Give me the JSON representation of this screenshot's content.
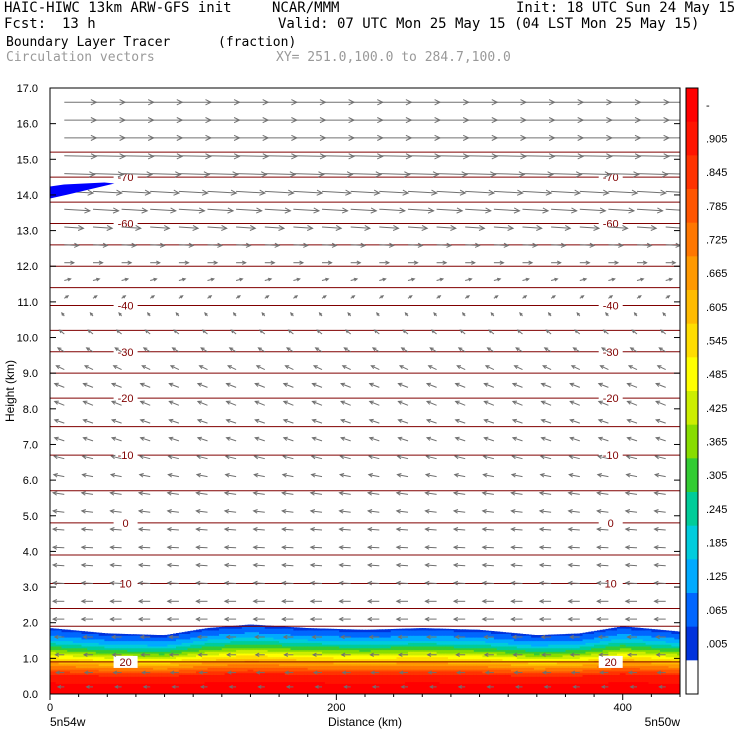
{
  "header": {
    "title_left": "HAIC-HIWC 13km ARW-GFS init",
    "title_center": "NCAR/MMM",
    "init": "Init: 18 UTC Sun 24 May 15",
    "fcst_label": "Fcst:",
    "fcst_value": "13 h",
    "valid": "Valid: 07 UTC Mon 25 May 15 (04 LST Mon 25 May 15)",
    "field_name": "Boundary Layer Tracer",
    "field_units": "(fraction)",
    "vectors_label": "Circulation vectors",
    "cross_section": "XY= 251.0,100.0 to 284.7,100.0"
  },
  "chart_data": {
    "type": "heatmap",
    "xlabel": "Distance (km)",
    "ylabel": "Height (km)",
    "xlim": [
      0,
      440
    ],
    "ylim": [
      0,
      17
    ],
    "x_ticks": [
      0,
      200,
      400
    ],
    "y_ticks": [
      "0.0",
      "1.0",
      "2.0",
      "3.0",
      "4.0",
      "5.0",
      "6.0",
      "7.0",
      "8.0",
      "9.0",
      "10.0",
      "11.0",
      "12.0",
      "13.0",
      "14.0",
      "15.0",
      "16.0",
      "17.0"
    ],
    "x_endpoint_labels": [
      "5n54w",
      "5n50w"
    ],
    "colorbar": {
      "labels": [
        "-",
        ".905",
        ".845",
        ".785",
        ".725",
        ".665",
        ".605",
        ".545",
        ".485",
        ".425",
        ".365",
        ".305",
        ".245",
        ".185",
        ".125",
        ".065",
        ".005"
      ],
      "colors": [
        "#ff0000",
        "#ff1500",
        "#ff3300",
        "#ff5500",
        "#ff7700",
        "#ff9900",
        "#ffbb00",
        "#ffdd00",
        "#ffff00",
        "#ccee00",
        "#88dd00",
        "#33cc33",
        "#00cc99",
        "#00ccdd",
        "#00aaff",
        "#0066ff",
        "#0033dd",
        "#ffffff"
      ]
    },
    "tracer_profile": {
      "heights_km": [
        0.0,
        0.5,
        0.9,
        1.2,
        1.5,
        1.8
      ],
      "fraction": [
        1.0,
        0.9,
        0.6,
        0.35,
        0.15,
        0.03
      ],
      "top_x_km": [
        0,
        40,
        80,
        110,
        140,
        180,
        220,
        260,
        300,
        340,
        370,
        400,
        440
      ],
      "top_height_km": [
        1.85,
        1.7,
        1.65,
        1.85,
        1.95,
        1.85,
        1.8,
        1.85,
        1.8,
        1.65,
        1.7,
        1.9,
        1.75
      ]
    },
    "temperature_contours": {
      "units": "deg C",
      "levels": [
        {
          "label": "20",
          "height_km": 0.9
        },
        {
          "label": "10",
          "height_km": 3.1
        },
        {
          "label": "0",
          "height_km": 4.8
        },
        {
          "label": "-10",
          "height_km": 6.7
        },
        {
          "label": "-20",
          "height_km": 8.3
        },
        {
          "label": "-30",
          "height_km": 9.6
        },
        {
          "label": "-40",
          "height_km": 10.9
        },
        {
          "label": "-60",
          "height_km": 13.2
        },
        {
          "label": "-70",
          "height_km": 14.5
        }
      ],
      "unlabeled_heights_km": [
        0.0,
        1.9,
        2.4,
        3.9,
        5.7,
        7.5,
        9.0,
        10.2,
        11.4,
        12.0,
        12.6,
        13.8,
        15.2,
        17.0
      ]
    },
    "circulation_vectors": {
      "rows": [
        {
          "height_km": 16.6,
          "u": 1.0,
          "w": 0.0
        },
        {
          "height_km": 16.1,
          "u": 1.0,
          "w": 0.0
        },
        {
          "height_km": 15.6,
          "u": 1.0,
          "w": 0.0
        },
        {
          "height_km": 15.1,
          "u": 1.0,
          "w": -0.02
        },
        {
          "height_km": 14.6,
          "u": 0.95,
          "w": -0.03
        },
        {
          "height_km": 14.1,
          "u": 0.9,
          "w": -0.05
        },
        {
          "height_km": 13.6,
          "u": 0.8,
          "w": -0.05
        },
        {
          "height_km": 13.1,
          "u": 0.6,
          "w": -0.04
        },
        {
          "height_km": 12.6,
          "u": 0.45,
          "w": -0.02
        },
        {
          "height_km": 12.1,
          "u": 0.3,
          "w": 0.0
        },
        {
          "height_km": 11.6,
          "u": 0.2,
          "w": 0.05
        },
        {
          "height_km": 11.1,
          "u": 0.12,
          "w": 0.08
        },
        {
          "height_km": 10.6,
          "u": -0.08,
          "w": 0.1
        },
        {
          "height_km": 10.1,
          "u": -0.15,
          "w": 0.12
        },
        {
          "height_km": 9.6,
          "u": -0.2,
          "w": 0.12
        },
        {
          "height_km": 9.1,
          "u": -0.25,
          "w": 0.12
        },
        {
          "height_km": 8.6,
          "u": -0.3,
          "w": 0.12
        },
        {
          "height_km": 8.1,
          "u": -0.3,
          "w": 0.12
        },
        {
          "height_km": 7.6,
          "u": -0.3,
          "w": 0.1
        },
        {
          "height_km": 7.1,
          "u": -0.3,
          "w": 0.1
        },
        {
          "height_km": 6.6,
          "u": -0.32,
          "w": 0.08
        },
        {
          "height_km": 6.1,
          "u": -0.33,
          "w": 0.06
        },
        {
          "height_km": 5.6,
          "u": -0.35,
          "w": 0.05
        },
        {
          "height_km": 5.1,
          "u": -0.35,
          "w": 0.04
        },
        {
          "height_km": 4.6,
          "u": -0.35,
          "w": 0.03
        },
        {
          "height_km": 4.1,
          "u": -0.35,
          "w": 0.02
        },
        {
          "height_km": 3.6,
          "u": -0.35,
          "w": 0.02
        },
        {
          "height_km": 3.1,
          "u": -0.35,
          "w": 0.02
        },
        {
          "height_km": 2.6,
          "u": -0.35,
          "w": 0.0
        },
        {
          "height_km": 2.1,
          "u": -0.35,
          "w": 0.0
        },
        {
          "height_km": 1.6,
          "u": -0.3,
          "w": 0.0
        },
        {
          "height_km": 1.1,
          "u": -0.28,
          "w": 0.0
        },
        {
          "height_km": 0.6,
          "u": -0.25,
          "w": 0.0
        },
        {
          "height_km": 0.2,
          "u": -0.2,
          "w": 0.0
        }
      ],
      "x_km": [
        10,
        30,
        50,
        70,
        90,
        110,
        130,
        150,
        170,
        190,
        210,
        230,
        250,
        270,
        290,
        310,
        330,
        350,
        370,
        390,
        410,
        430
      ]
    },
    "blue_feature": {
      "x_km": [
        0,
        45
      ],
      "height_km": [
        13.9,
        14.35
      ],
      "color": "#0000ff"
    },
    "grid": false
  },
  "colors": {
    "contour": "#800000",
    "vector": "#707070",
    "axis": "#000000"
  }
}
